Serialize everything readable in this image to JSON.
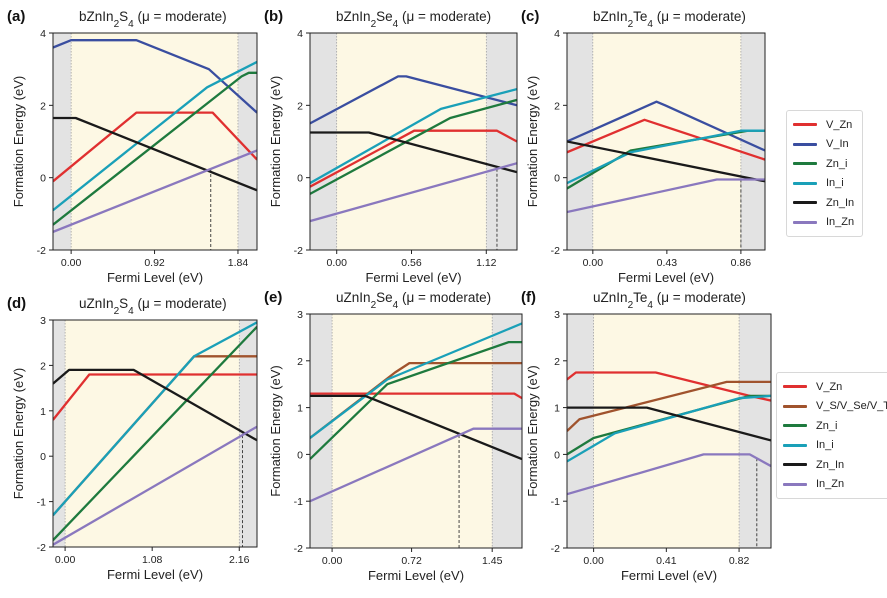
{
  "figure": {
    "shared_ylabel": "Formation Energy (eV)",
    "shared_xlabel": "Fermi Level (eV)",
    "legend_top": [
      {
        "label": "V_Zn",
        "key": "VZn"
      },
      {
        "label": "V_In",
        "key": "VIn"
      },
      {
        "label": "Zn_i",
        "key": "Zni"
      },
      {
        "label": "In_i",
        "key": "Ini"
      },
      {
        "label": "Zn_In",
        "key": "ZnIn"
      },
      {
        "label": "In_Zn",
        "key": "InZn"
      }
    ],
    "legend_bottom": [
      {
        "label": "V_Zn",
        "key": "VZn"
      },
      {
        "label": "V_S/V_Se/V_Te",
        "key": "VX"
      },
      {
        "label": "Zn_i",
        "key": "Zni"
      },
      {
        "label": "In_i",
        "key": "Ini"
      },
      {
        "label": "Zn_In",
        "key": "ZnIn"
      },
      {
        "label": "In_Zn",
        "key": "InZn"
      }
    ],
    "colors": {
      "VZn": "#e03030",
      "VIn": "#3a4ea0",
      "Zni": "#1e7a3e",
      "Ini": "#1aa0b8",
      "ZnIn": "#1a1a1a",
      "InZn": "#8a78be",
      "VX": "#a0532d",
      "gap_bg": "#fdf8e4",
      "outside_bg": "#e3e3e3"
    }
  },
  "chart_data": [
    {
      "type": "line",
      "panel_label": "(a)",
      "title": "bZnIn2S4  (μ = moderate)",
      "xlabel": "Fermi Level (eV)",
      "ylabel": "Formation Energy (eV)",
      "xlim": [
        -0.2,
        2.05
      ],
      "ylim": [
        -2,
        4
      ],
      "xticks": [
        "0.00",
        "0.92",
        "1.84"
      ],
      "xtick_values": [
        0.0,
        0.92,
        1.84
      ],
      "yticks": [
        -2,
        0,
        2,
        4
      ],
      "bandgap": [
        0.0,
        1.84
      ],
      "dashed_x": 1.54,
      "series": [
        {
          "key": "VZn",
          "name": "V_Zn",
          "x": [
            -0.2,
            0.72,
            1.56,
            2.05
          ],
          "y": [
            -0.1,
            1.8,
            1.8,
            0.5
          ]
        },
        {
          "key": "VIn",
          "name": "V_In",
          "x": [
            -0.2,
            0.0,
            0.72,
            1.52,
            2.05
          ],
          "y": [
            3.6,
            3.8,
            3.8,
            3.0,
            1.8
          ]
        },
        {
          "key": "Zni",
          "name": "Zn_i",
          "x": [
            -0.2,
            1.88,
            1.96,
            2.05
          ],
          "y": [
            -1.3,
            2.8,
            2.9,
            2.9
          ]
        },
        {
          "key": "Ini",
          "name": "In_i",
          "x": [
            -0.2,
            1.5,
            2.05
          ],
          "y": [
            -0.9,
            2.5,
            3.2
          ]
        },
        {
          "key": "ZnIn",
          "name": "Zn_In",
          "x": [
            -0.2,
            0.05,
            2.05
          ],
          "y": [
            1.65,
            1.65,
            -0.35
          ]
        },
        {
          "key": "InZn",
          "name": "In_Zn",
          "x": [
            -0.2,
            2.05
          ],
          "y": [
            -1.5,
            0.75
          ]
        }
      ]
    },
    {
      "type": "line",
      "panel_label": "(b)",
      "title": "bZnIn2Se4  (μ = moderate)",
      "xlabel": "Fermi Level (eV)",
      "ylabel": "Formation Energy (eV)",
      "xlim": [
        -0.2,
        1.35
      ],
      "ylim": [
        -2,
        4
      ],
      "xticks": [
        "0.00",
        "0.56",
        "1.12"
      ],
      "xtick_values": [
        0.0,
        0.56,
        1.12
      ],
      "yticks": [
        -2,
        0,
        2,
        4
      ],
      "bandgap": [
        0.0,
        1.12
      ],
      "dashed_x": 1.2,
      "series": [
        {
          "key": "VZn",
          "name": "V_Zn",
          "x": [
            -0.2,
            0.58,
            1.2,
            1.35
          ],
          "y": [
            -0.25,
            1.3,
            1.3,
            1.0
          ]
        },
        {
          "key": "VIn",
          "name": "V_In",
          "x": [
            -0.2,
            0.46,
            0.52,
            1.35
          ],
          "y": [
            1.5,
            2.8,
            2.8,
            2.0
          ]
        },
        {
          "key": "Zni",
          "name": "Zn_i",
          "x": [
            -0.2,
            0.85,
            1.35
          ],
          "y": [
            -0.45,
            1.65,
            2.15
          ]
        },
        {
          "key": "Ini",
          "name": "In_i",
          "x": [
            -0.2,
            0.78,
            1.35
          ],
          "y": [
            -0.15,
            1.9,
            2.45
          ]
        },
        {
          "key": "ZnIn",
          "name": "Zn_In",
          "x": [
            -0.2,
            0.24,
            1.35
          ],
          "y": [
            1.25,
            1.25,
            0.15
          ]
        },
        {
          "key": "InZn",
          "name": "In_Zn",
          "x": [
            -0.2,
            1.35
          ],
          "y": [
            -1.2,
            0.4
          ]
        }
      ]
    },
    {
      "type": "line",
      "panel_label": "(c)",
      "title": "bZnIn2Te4  (μ = moderate)",
      "xlabel": "Fermi Level (eV)",
      "ylabel": "Formation Energy (eV)",
      "xlim": [
        -0.15,
        1.0
      ],
      "ylim": [
        -2,
        4
      ],
      "xticks": [
        "0.00",
        "0.43",
        "0.86"
      ],
      "xtick_values": [
        0.0,
        0.43,
        0.86
      ],
      "yticks": [
        -2,
        0,
        2,
        4
      ],
      "bandgap": [
        0.0,
        0.86
      ],
      "dashed_x": 0.86,
      "series": [
        {
          "key": "VZn",
          "name": "V_Zn",
          "x": [
            -0.15,
            0.3,
            1.0
          ],
          "y": [
            0.7,
            1.6,
            0.5
          ]
        },
        {
          "key": "VIn",
          "name": "V_In",
          "x": [
            -0.15,
            0.37,
            0.42,
            1.0
          ],
          "y": [
            1.0,
            2.1,
            2.0,
            0.75
          ]
        },
        {
          "key": "Zni",
          "name": "Zn_i",
          "x": [
            -0.15,
            0.22,
            0.9,
            1.0
          ],
          "y": [
            -0.3,
            0.75,
            1.3,
            1.3
          ]
        },
        {
          "key": "Ini",
          "name": "In_i",
          "x": [
            -0.15,
            0.22,
            0.86,
            1.0
          ],
          "y": [
            -0.15,
            0.7,
            1.3,
            1.3
          ]
        },
        {
          "key": "ZnIn",
          "name": "Zn_In",
          "x": [
            -0.15,
            1.0
          ],
          "y": [
            1.0,
            -0.1
          ]
        },
        {
          "key": "InZn",
          "name": "In_Zn",
          "x": [
            -0.15,
            0.72,
            0.92,
            1.0
          ],
          "y": [
            -0.95,
            -0.05,
            -0.05,
            -0.05
          ]
        }
      ]
    },
    {
      "type": "line",
      "panel_label": "(d)",
      "title": "uZnIn2S4  (μ = moderate)",
      "xlabel": "Fermi Level (eV)",
      "ylabel": "Formation Energy (eV)",
      "xlim": [
        -0.15,
        2.38
      ],
      "ylim": [
        -2,
        3
      ],
      "xticks": [
        "0.00",
        "1.08",
        "2.16"
      ],
      "xtick_values": [
        0.0,
        1.08,
        2.16
      ],
      "yticks": [
        -2,
        -1,
        0,
        1,
        2,
        3
      ],
      "bandgap": [
        0.0,
        2.16
      ],
      "dashed_x": 2.2,
      "series": [
        {
          "key": "VZn",
          "name": "V_Zn",
          "x": [
            -0.15,
            0.3,
            2.38
          ],
          "y": [
            0.8,
            1.8,
            1.8
          ]
        },
        {
          "key": "VX",
          "name": "V_S/V_Se/V_Te",
          "x": [
            -0.15,
            1.6,
            2.38
          ],
          "y": [
            -1.3,
            2.2,
            2.2
          ]
        },
        {
          "key": "Zni",
          "name": "Zn_i",
          "x": [
            -0.15,
            2.38
          ],
          "y": [
            -1.85,
            2.85
          ]
        },
        {
          "key": "Ini",
          "name": "In_i",
          "x": [
            -0.15,
            1.6,
            2.38
          ],
          "y": [
            -1.3,
            2.2,
            2.95
          ]
        },
        {
          "key": "ZnIn",
          "name": "Zn_In",
          "x": [
            -0.15,
            0.05,
            0.85,
            2.38
          ],
          "y": [
            1.6,
            1.9,
            1.9,
            0.35
          ]
        },
        {
          "key": "InZn",
          "name": "In_Zn",
          "x": [
            -0.15,
            2.38
          ],
          "y": [
            -1.95,
            0.65
          ]
        }
      ]
    },
    {
      "type": "line",
      "panel_label": "(e)",
      "title": "uZnIn2Se4  (μ = moderate)",
      "xlabel": "Fermi Level (eV)",
      "ylabel": "Formation Energy (eV)",
      "xlim": [
        -0.2,
        1.72
      ],
      "ylim": [
        -2,
        3
      ],
      "xticks": [
        "0.00",
        "0.72",
        "1.45"
      ],
      "xtick_values": [
        0.0,
        0.72,
        1.45
      ],
      "yticks": [
        -2,
        -1,
        0,
        1,
        2,
        3
      ],
      "bandgap": [
        0.0,
        1.45
      ],
      "dashed_x": 1.15,
      "series": [
        {
          "key": "VZn",
          "name": "V_Zn",
          "x": [
            -0.2,
            1.65,
            1.72
          ],
          "y": [
            1.3,
            1.3,
            1.2
          ]
        },
        {
          "key": "VX",
          "name": "V_S/V_Se/V_Te",
          "x": [
            -0.2,
            0.57,
            0.7,
            1.72
          ],
          "y": [
            0.35,
            1.75,
            1.95,
            1.95
          ]
        },
        {
          "key": "Zni",
          "name": "Zn_i",
          "x": [
            -0.2,
            0.5,
            1.6,
            1.72
          ],
          "y": [
            -0.1,
            1.5,
            2.4,
            2.4
          ]
        },
        {
          "key": "Ini",
          "name": "In_i",
          "x": [
            -0.2,
            0.5,
            1.72
          ],
          "y": [
            0.35,
            1.6,
            2.8
          ]
        },
        {
          "key": "ZnIn",
          "name": "Zn_In",
          "x": [
            -0.2,
            0.3,
            1.72
          ],
          "y": [
            1.25,
            1.25,
            -0.1
          ]
        },
        {
          "key": "InZn",
          "name": "In_Zn",
          "x": [
            -0.2,
            1.28,
            1.72
          ],
          "y": [
            -1.0,
            0.55,
            0.55
          ]
        }
      ]
    },
    {
      "type": "line",
      "panel_label": "(f)",
      "title": "uZnIn2Te4  (μ = moderate)",
      "xlabel": "Fermi Level (eV)",
      "ylabel": "Formation Energy (eV)",
      "xlim": [
        -0.15,
        1.0
      ],
      "ylim": [
        -2,
        3
      ],
      "xticks": [
        "0.00",
        "0.41",
        "0.82"
      ],
      "xtick_values": [
        0.0,
        0.41,
        0.82
      ],
      "yticks": [
        -2,
        -1,
        0,
        1,
        2,
        3
      ],
      "bandgap": [
        0.0,
        0.82
      ],
      "dashed_x": 0.92,
      "series": [
        {
          "key": "VZn",
          "name": "V_Zn",
          "x": [
            -0.15,
            -0.1,
            0.35,
            0.88,
            1.0
          ],
          "y": [
            1.6,
            1.75,
            1.75,
            1.25,
            1.15
          ]
        },
        {
          "key": "VX",
          "name": "V_S/V_Se/V_Te",
          "x": [
            -0.15,
            -0.08,
            0.75,
            1.0
          ],
          "y": [
            0.5,
            0.75,
            1.55,
            1.55
          ]
        },
        {
          "key": "Zni",
          "name": "Zn_i",
          "x": [
            -0.15,
            0.0,
            0.88,
            1.0
          ],
          "y": [
            0.0,
            0.35,
            1.25,
            1.25
          ]
        },
        {
          "key": "Ini",
          "name": "In_i",
          "x": [
            -0.15,
            0.12,
            0.82,
            1.0
          ],
          "y": [
            -0.15,
            0.45,
            1.2,
            1.25
          ]
        },
        {
          "key": "ZnIn",
          "name": "Zn_In",
          "x": [
            -0.15,
            0.3,
            1.0
          ],
          "y": [
            1.0,
            1.0,
            0.3
          ]
        },
        {
          "key": "InZn",
          "name": "In_Zn",
          "x": [
            -0.15,
            0.62,
            0.82,
            0.88,
            1.0
          ],
          "y": [
            -0.85,
            0.0,
            0.0,
            0.0,
            -0.25
          ]
        }
      ]
    }
  ]
}
